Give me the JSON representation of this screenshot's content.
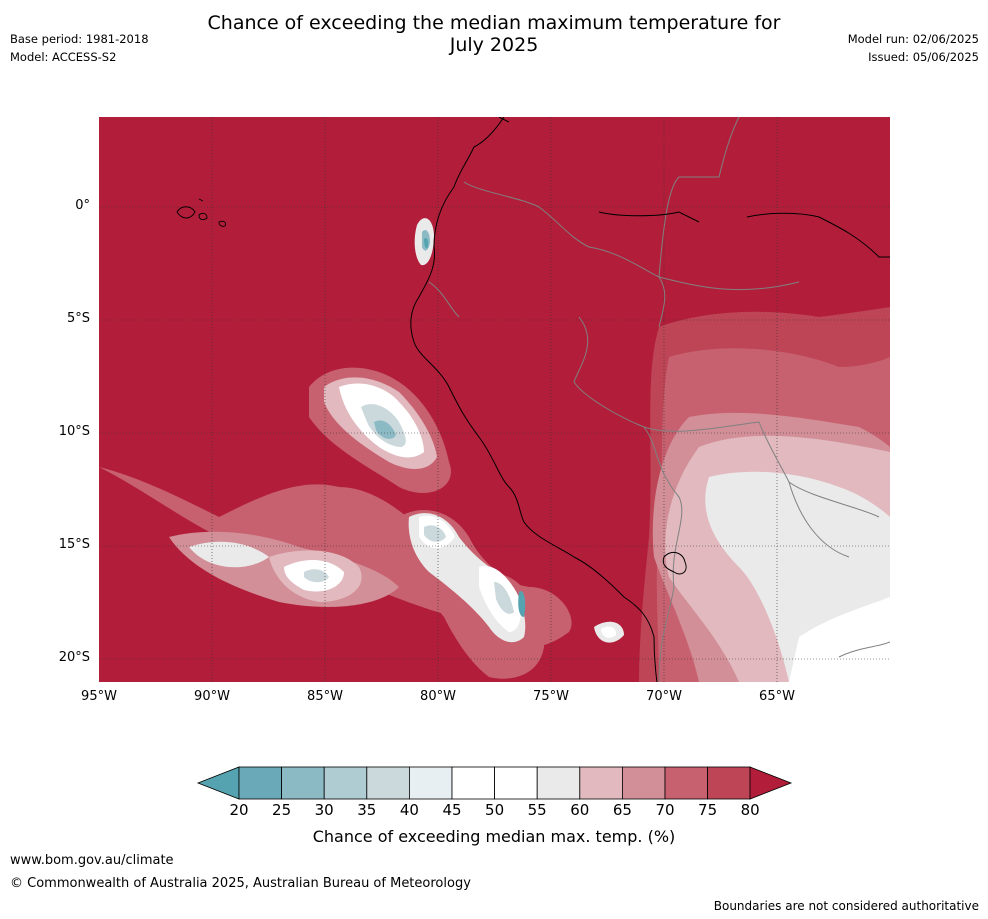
{
  "title_line1": "Chance of exceeding the median maximum temperature for",
  "title_line2": "July 2025",
  "meta_left": [
    "Base period: 1981-2018",
    "Model: ACCESS-S2"
  ],
  "meta_right": [
    "Model run: 02/06/2025",
    "Issued: 05/06/2025"
  ],
  "lat_labels": [
    "0°",
    "5°S",
    "10°S",
    "15°S",
    "20°S"
  ],
  "lon_labels": [
    "95°W",
    "90°W",
    "85°W",
    "80°W",
    "75°W",
    "70°W",
    "65°W"
  ],
  "colorbar": {
    "label": "Chance of exceeding median max. temp. (%)",
    "ticks": [
      "20",
      "25",
      "30",
      "35",
      "40",
      "45",
      "50",
      "55",
      "60",
      "65",
      "70",
      "75",
      "80"
    ],
    "under_color": "#55a3b1",
    "over_color": "#b21e3a",
    "bin_colors": [
      "#6aaab8",
      "#8bbac5",
      "#aeccd1",
      "#cbd8dc",
      "#e8eff2",
      "#ffffff",
      "#ffffff",
      "#ebeaea",
      "#e1b9bf",
      "#d28f98",
      "#c7616f",
      "#bd4556"
    ]
  },
  "map_colors": {
    "background": "#b21e3a",
    "c75": "#bd4556",
    "c70": "#c7616f",
    "c65": "#d28f98",
    "c60": "#e1b9bf",
    "c55": "#ebeaea",
    "c50": "#ffffff",
    "c40": "#cbd8dc",
    "c30": "#8bbac5",
    "c20": "#55a3b1",
    "coast": "#000000",
    "border": "#808080",
    "grid": "#333333"
  },
  "footer": {
    "url": "www.bom.gov.au/climate",
    "copyright": "© Commonwealth of Australia 2025, Australian Bureau of Meteorology",
    "disclaimer": "Boundaries are not considered authoritative"
  }
}
